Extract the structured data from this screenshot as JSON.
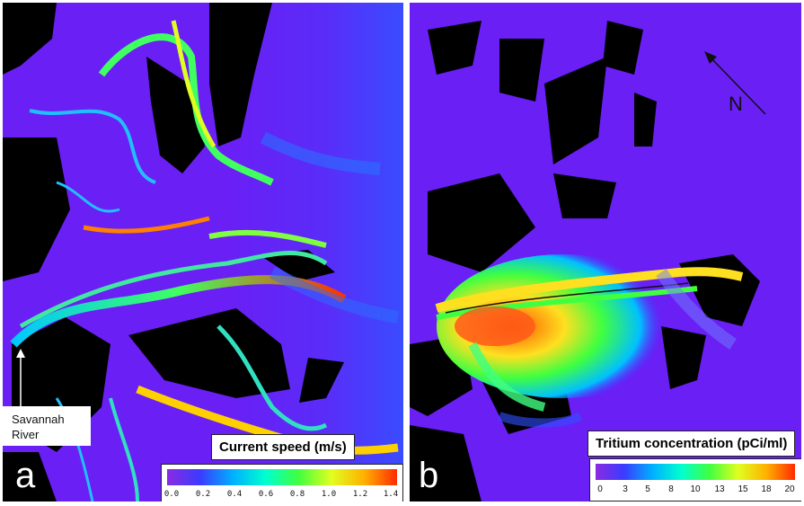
{
  "panel_a": {
    "letter": "a",
    "colorbar_title": "Current speed (m/s)",
    "colorbar_ticks": [
      "0.0",
      "0.2",
      "0.4",
      "0.6",
      "0.8",
      "1.0",
      "1.2",
      "1.4"
    ],
    "annotation": "Savannah River"
  },
  "panel_b": {
    "letter": "b",
    "colorbar_title": "Tritium concentration (pCi/ml)",
    "colorbar_ticks": [
      "0",
      "3",
      "5",
      "8",
      "10",
      "13",
      "15",
      "18",
      "20"
    ],
    "north_label": "N"
  },
  "colors": {
    "water_background": "#6a1ff5",
    "land": "#000000",
    "colormap": [
      "#8a2be2",
      "#3b3bff",
      "#00b0ff",
      "#00ffd0",
      "#40ff40",
      "#e0ff20",
      "#ffb000",
      "#ff2a00"
    ]
  }
}
